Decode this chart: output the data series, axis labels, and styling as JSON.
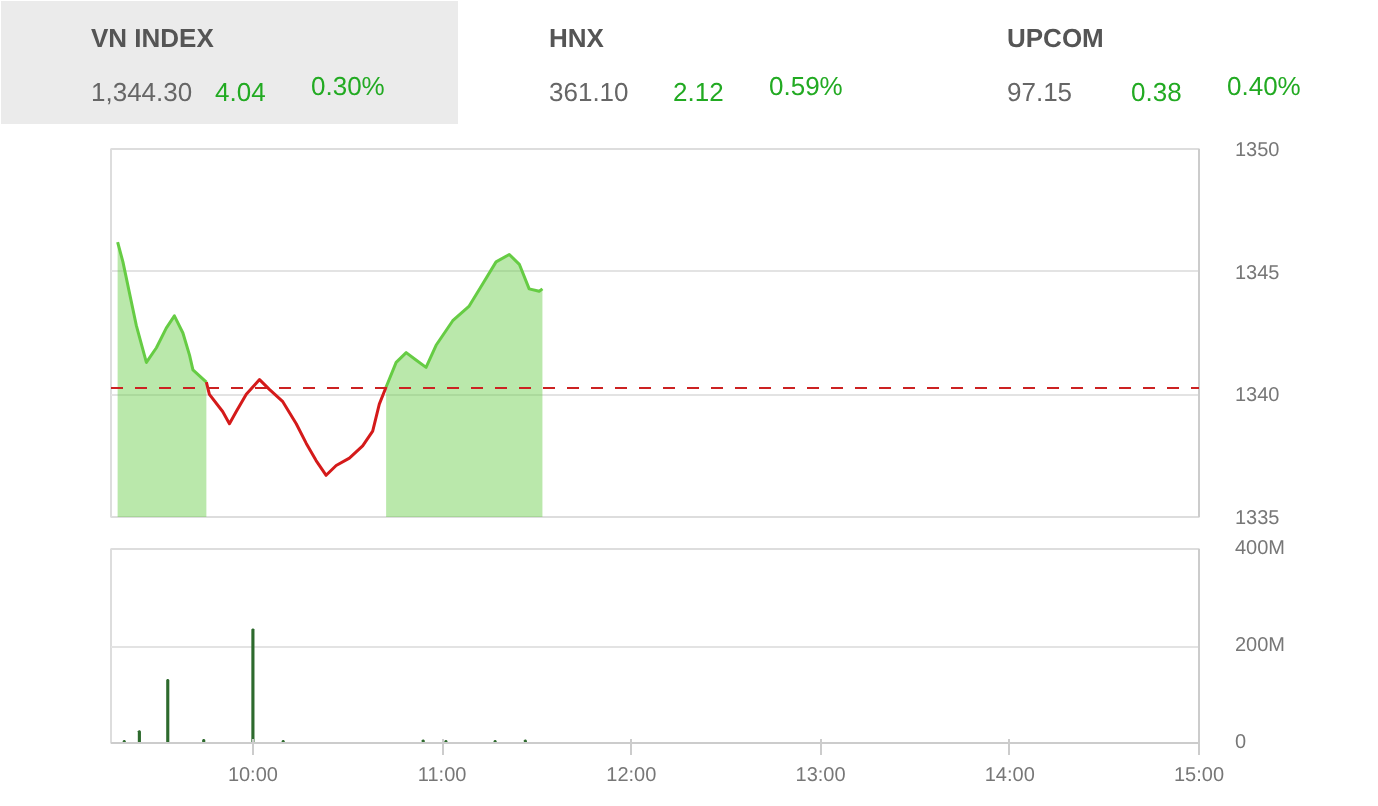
{
  "chart_data": [
    {
      "type": "other",
      "title": "VN INDEX",
      "annotations": [
        "1,344.30",
        "4.04",
        "0.30%"
      ]
    },
    {
      "type": "other",
      "title": "HNX",
      "annotations": [
        "361.10",
        "2.12",
        "0.59%"
      ]
    },
    {
      "type": "other",
      "title": "UPCOM",
      "annotations": [
        "97.15",
        "0.38",
        "0.40%"
      ]
    },
    {
      "type": "area",
      "x": [
        9.285,
        9.313,
        9.384,
        9.437,
        9.49,
        9.542,
        9.585,
        9.63,
        9.665,
        9.683,
        9.754,
        9.77,
        9.84,
        9.876,
        9.912,
        9.965,
        10.035,
        10.087,
        10.158,
        10.229,
        10.282,
        10.334,
        10.387,
        10.44,
        10.51,
        10.58,
        10.633,
        10.668,
        10.704,
        10.757,
        10.81,
        10.862,
        10.915,
        10.968,
        11.056,
        11.143,
        11.214,
        11.285,
        11.355,
        11.408,
        11.46,
        11.513,
        11.53
      ],
      "series": [
        {
          "type": "area",
          "color": "#66cc44",
          "values": [
            1346.2,
            1345.4,
            1342.8,
            1341.3,
            1341.9,
            1342.7,
            1343.2,
            1342.5,
            1341.6,
            1341.0,
            1340.5,
            null,
            null,
            null,
            null,
            null,
            null,
            null,
            null,
            null,
            null,
            null,
            null,
            null,
            null,
            null,
            null,
            null,
            1340.3,
            1341.3,
            1341.7,
            1341.4,
            1341.1,
            1342.0,
            1343.0,
            1343.6,
            1344.5,
            1345.4,
            1345.7,
            1345.3,
            1344.3,
            1344.2,
            1344.3
          ]
        },
        {
          "type": "line",
          "color": "#d41a1a",
          "values": [
            null,
            null,
            null,
            null,
            null,
            null,
            null,
            null,
            null,
            null,
            1340.5,
            1340.0,
            1339.3,
            1338.8,
            1339.3,
            1340.0,
            1340.6,
            1340.2,
            1339.7,
            1338.8,
            1338.0,
            1337.3,
            1336.7,
            1337.1,
            1337.4,
            1337.9,
            1338.5,
            1339.6,
            1340.3,
            null,
            null,
            null,
            null,
            null,
            null,
            null,
            null,
            null,
            null,
            null,
            null,
            null,
            null
          ]
        }
      ],
      "ref_lines": [
        {
          "axis": "y",
          "value": 1340.26,
          "color": "#cc2222",
          "line_style": "dashed"
        }
      ],
      "xlim": [
        9.25,
        15
      ],
      "ylim": [
        1335,
        1350
      ],
      "yticks": [
        1335,
        1340,
        1345,
        1350
      ],
      "grid": "y",
      "tick_labels": "y"
    },
    {
      "type": "bar",
      "x": [
        9.32,
        9.4,
        9.55,
        9.74,
        10.0,
        10.16,
        10.9,
        11.02,
        11.28,
        11.44
      ],
      "values": [
        4000000,
        24000000,
        130000000,
        6000000,
        234000000,
        4000000,
        5000000,
        4000000,
        4000000,
        5000000
      ],
      "color": "#2d6a2d",
      "xlim": [
        9.25,
        15
      ],
      "ylim": [
        0,
        400000000
      ],
      "xticks": [
        {
          "value": 10,
          "label": "10:00"
        },
        {
          "value": 11,
          "label": "11:00"
        },
        {
          "value": 12,
          "label": "12:00"
        },
        {
          "value": 13,
          "label": "13:00"
        },
        {
          "value": 14,
          "label": "14:00"
        },
        {
          "value": 15,
          "label": "15:00"
        }
      ],
      "yticks": [
        0,
        {
          "value": 200000000,
          "label": "200M"
        },
        {
          "value": 400000000,
          "label": "400M"
        }
      ],
      "grid": "y"
    }
  ]
}
